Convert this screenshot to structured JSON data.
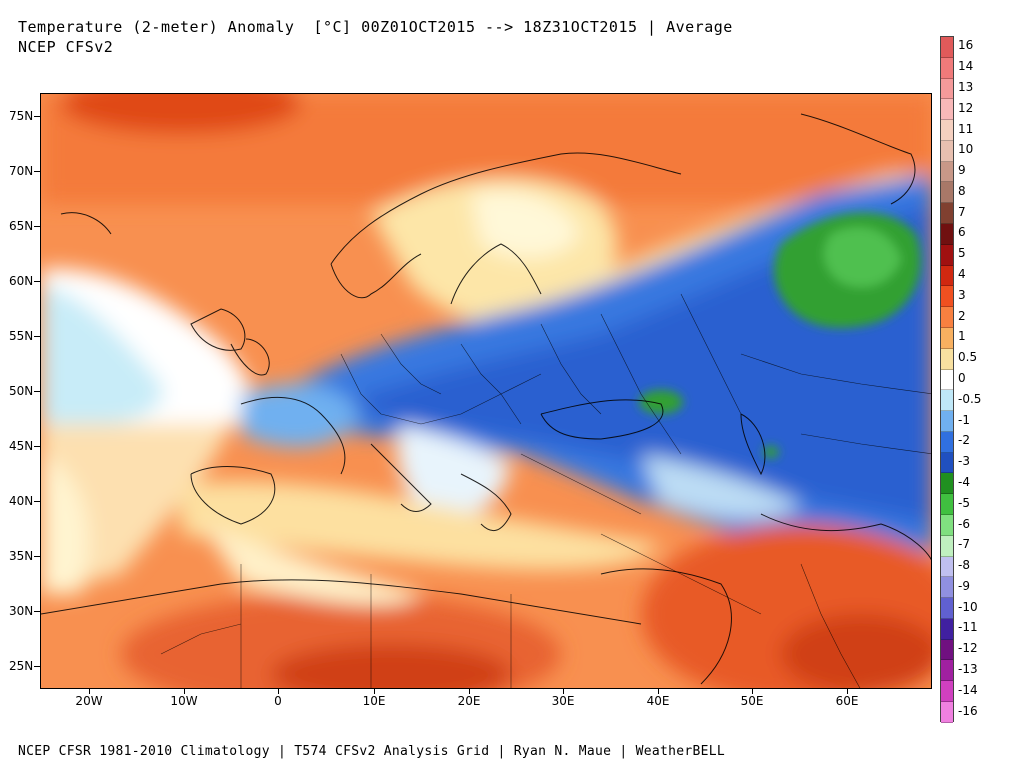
{
  "title_line1": "Temperature (2-meter) Anomaly  [°C] 00Z01OCT2015 --> 18Z31OCT2015 | Average",
  "title_line2": "NCEP CFSv2",
  "footer": "NCEP CFSR 1981-2010 Climatology | T574 CFSv2 Analysis Grid | Ryan N. Maue | WeatherBELL",
  "lat_labels": [
    "75N",
    "70N",
    "65N",
    "60N",
    "55N",
    "50N",
    "45N",
    "40N",
    "35N",
    "30N",
    "25N"
  ],
  "lon_labels": [
    "20W",
    "10W",
    "0",
    "10E",
    "20E",
    "30E",
    "40E",
    "50E",
    "60E"
  ],
  "legend": {
    "labels": [
      "16",
      "14",
      "13",
      "12",
      "11",
      "10",
      "9",
      "8",
      "7",
      "6",
      "5",
      "4",
      "3",
      "2",
      "1",
      "0.5",
      "0",
      "-0.5",
      "-1",
      "-2",
      "-3",
      "-4",
      "-5",
      "-6",
      "-7",
      "-8",
      "-9",
      "-10",
      "-11",
      "-12",
      "-13",
      "-14",
      "-16"
    ],
    "colors": [
      "#e05a5a",
      "#f07a7a",
      "#f59a9a",
      "#f8b8b8",
      "#f5d0c0",
      "#e8c0b0",
      "#c89888",
      "#a87868",
      "#804030",
      "#701010",
      "#a01010",
      "#d02810",
      "#f05020",
      "#f88040",
      "#f8b060",
      "#f8e0a0",
      "#ffffff",
      "#c0e8f8",
      "#70b0f0",
      "#3070e0",
      "#2050c0",
      "#209020",
      "#40c040",
      "#80e080",
      "#c0f0c0",
      "#c0c0f0",
      "#9090e0",
      "#6060d0",
      "#4020a0",
      "#701080",
      "#a020a0",
      "#d040c0",
      "#f080e0"
    ]
  }
}
